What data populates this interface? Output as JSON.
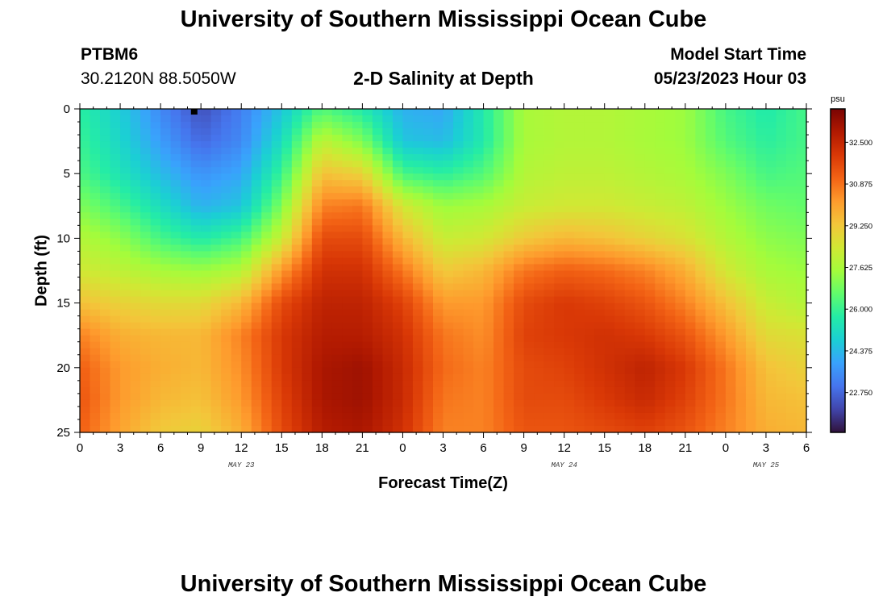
{
  "header": {
    "title": "University of Southern Mississippi Ocean Cube",
    "station_id": "PTBM6",
    "coordinates": "30.2120N  88.5050W",
    "chart_title": "2-D Salinity at Depth",
    "start_label": "Model Start Time",
    "start_value": "05/23/2023 Hour 03"
  },
  "footer": {
    "title": "University of Southern Mississippi Ocean Cube"
  },
  "chart_data": {
    "type": "heatmap",
    "title": "2-D Salinity at Depth",
    "xlabel": "Forecast Time(Z)",
    "ylabel": "Depth (ft)",
    "x_range_hours": [
      0,
      54
    ],
    "y_range_ft": [
      0,
      25
    ],
    "x_ticks": [
      {
        "hour": 0,
        "label": "0"
      },
      {
        "hour": 3,
        "label": "3"
      },
      {
        "hour": 6,
        "label": "6"
      },
      {
        "hour": 9,
        "label": "9"
      },
      {
        "hour": 12,
        "label": "12"
      },
      {
        "hour": 15,
        "label": "15"
      },
      {
        "hour": 18,
        "label": "18"
      },
      {
        "hour": 21,
        "label": "21"
      },
      {
        "hour": 24,
        "label": "0"
      },
      {
        "hour": 27,
        "label": "3"
      },
      {
        "hour": 30,
        "label": "6"
      },
      {
        "hour": 33,
        "label": "9"
      },
      {
        "hour": 36,
        "label": "12"
      },
      {
        "hour": 39,
        "label": "15"
      },
      {
        "hour": 42,
        "label": "18"
      },
      {
        "hour": 45,
        "label": "21"
      },
      {
        "hour": 48,
        "label": "0"
      },
      {
        "hour": 51,
        "label": "3"
      },
      {
        "hour": 54,
        "label": "6"
      }
    ],
    "y_ticks": [
      {
        "depth": 0,
        "label": "0"
      },
      {
        "depth": 5,
        "label": "5"
      },
      {
        "depth": 10,
        "label": "10"
      },
      {
        "depth": 15,
        "label": "15"
      },
      {
        "depth": 20,
        "label": "20"
      },
      {
        "depth": 25,
        "label": "25"
      }
    ],
    "date_labels": [
      {
        "hour": 12,
        "label": "MAY 23"
      },
      {
        "hour": 36,
        "label": "MAY 24"
      },
      {
        "hour": 51,
        "label": "MAY 25"
      }
    ],
    "current_time_marker_hour": 8.5,
    "colorbar": {
      "unit": "psu",
      "range": [
        21.2,
        33.8
      ],
      "labels": [
        "32.500",
        "30.875",
        "29.250",
        "27.625",
        "26.000",
        "24.375",
        "22.750"
      ],
      "colors": [
        "#30123b",
        "#4145ab",
        "#4675ed",
        "#39a2fc",
        "#1bcfd4",
        "#24eca6",
        "#61fc6c",
        "#a4fc3b",
        "#d1e834",
        "#f3c63a",
        "#fe9b2d",
        "#f36315",
        "#d93806",
        "#b11901",
        "#7a0403"
      ]
    },
    "depth_samples_ft": [
      0,
      2.5,
      5,
      7.5,
      10,
      12.5,
      15,
      17.5,
      20,
      22.5,
      25
    ],
    "time_samples_hours": [
      0,
      3,
      6,
      9,
      12,
      15,
      18,
      21,
      24,
      27,
      30,
      33,
      36,
      39,
      42,
      45,
      48,
      51,
      54
    ],
    "salinity_psu": [
      [
        25.8,
        24.8,
        23.4,
        22.3,
        23.2,
        24.6,
        26.4,
        25.6,
        24.2,
        24.0,
        25.6,
        27.6,
        27.8,
        27.8,
        27.6,
        27.4,
        26.2,
        25.6,
        26.2
      ],
      [
        26.0,
        25.0,
        23.8,
        22.8,
        23.4,
        25.2,
        28.0,
        27.0,
        24.6,
        24.4,
        25.6,
        27.6,
        27.8,
        27.8,
        27.6,
        27.4,
        26.4,
        25.8,
        26.2
      ],
      [
        26.3,
        25.4,
        24.4,
        23.6,
        24.0,
        26.0,
        29.4,
        29.0,
        26.2,
        25.8,
        26.4,
        27.8,
        28.0,
        28.0,
        27.8,
        27.6,
        27.0,
        26.2,
        26.4
      ],
      [
        27.0,
        26.2,
        25.2,
        24.2,
        24.6,
        27.0,
        30.6,
        30.8,
        28.4,
        27.4,
        27.6,
        28.2,
        28.4,
        28.4,
        28.2,
        28.0,
        27.4,
        26.8,
        26.6
      ],
      [
        27.8,
        27.2,
        26.2,
        25.6,
        26.2,
        28.2,
        31.6,
        31.6,
        29.6,
        28.2,
        28.4,
        29.2,
        29.6,
        29.4,
        29.0,
        28.6,
        27.8,
        27.2,
        27.0
      ],
      [
        28.4,
        28.0,
        27.6,
        27.4,
        27.8,
        30.2,
        32.2,
        32.2,
        30.8,
        29.2,
        29.6,
        30.8,
        31.2,
        31.0,
        30.6,
        29.8,
        28.4,
        27.6,
        27.4
      ],
      [
        29.4,
        29.0,
        28.8,
        28.8,
        29.6,
        31.6,
        32.6,
        32.6,
        31.8,
        30.2,
        30.2,
        31.6,
        32.0,
        31.8,
        31.4,
        30.6,
        29.4,
        28.2,
        27.8
      ],
      [
        30.6,
        29.8,
        29.6,
        29.6,
        30.6,
        32.0,
        32.8,
        32.8,
        32.2,
        30.8,
        30.4,
        31.8,
        32.0,
        32.2,
        32.0,
        31.4,
        30.2,
        28.8,
        28.6
      ],
      [
        31.2,
        30.2,
        29.8,
        29.6,
        30.4,
        32.0,
        33.0,
        33.2,
        32.4,
        31.0,
        30.6,
        31.6,
        31.8,
        32.2,
        32.6,
        32.0,
        30.8,
        29.4,
        29.0
      ],
      [
        31.4,
        30.2,
        29.6,
        29.4,
        30.2,
        31.8,
        33.0,
        33.2,
        32.4,
        30.8,
        30.6,
        31.6,
        31.6,
        32.0,
        32.4,
        31.8,
        30.8,
        29.6,
        29.4
      ],
      [
        31.2,
        30.0,
        29.2,
        29.0,
        29.8,
        31.6,
        32.8,
        33.0,
        32.2,
        30.6,
        30.6,
        31.4,
        31.4,
        31.6,
        31.8,
        31.4,
        30.6,
        29.8,
        29.6
      ]
    ]
  }
}
